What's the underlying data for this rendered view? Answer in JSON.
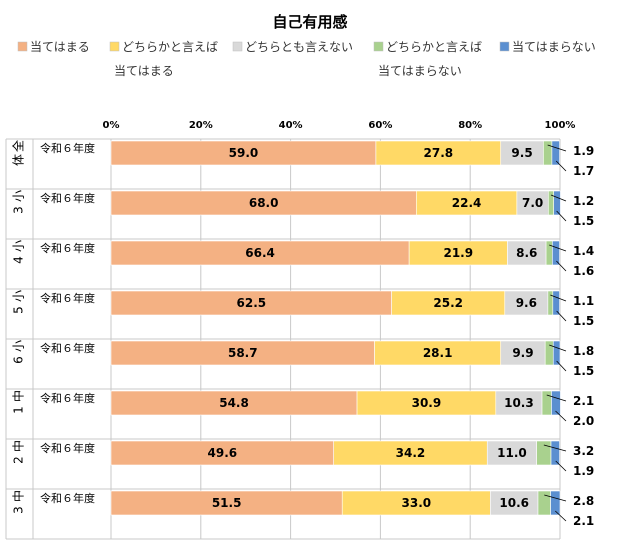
{
  "chart_data": {
    "type": "bar",
    "orientation": "horizontal",
    "stacked": "percent",
    "title": "自己有用感",
    "legend": {
      "position": "top",
      "entries": [
        {
          "lines": [
            "当てはまる"
          ],
          "color": "#f4b183"
        },
        {
          "lines": [
            "どちらかと言えば",
            "当てはまる"
          ],
          "color": "#ffd966"
        },
        {
          "lines": [
            "どちらとも言えない"
          ],
          "color": "#d9d9d9"
        },
        {
          "lines": [
            "どちらかと言えば",
            "当てはまらない"
          ],
          "color": "#a9d18e"
        },
        {
          "lines": [
            "当てはまらない"
          ],
          "color": "#5b8fd0"
        }
      ]
    },
    "xlim": [
      0,
      100
    ],
    "xticks": [
      "0%",
      "20%",
      "40%",
      "60%",
      "80%",
      "100%"
    ],
    "grid": true,
    "groups": [
      "全体",
      "小3",
      "小4",
      "小5",
      "小6",
      "中1",
      "中2",
      "中3"
    ],
    "row_label": "令和６年度",
    "series": [
      {
        "name": "当てはまる",
        "values": [
          59.0,
          68.0,
          66.4,
          62.5,
          58.7,
          54.8,
          49.6,
          51.5
        ]
      },
      {
        "name": "どちらかと言えば当てはまる",
        "values": [
          27.8,
          22.4,
          21.9,
          25.2,
          28.1,
          30.9,
          34.2,
          33.0
        ]
      },
      {
        "name": "どちらとも言えない",
        "values": [
          9.5,
          7.0,
          8.6,
          9.6,
          9.9,
          10.3,
          11.0,
          10.6
        ]
      },
      {
        "name": "どちらかと言えば当てはまらない",
        "values": [
          1.9,
          1.2,
          1.4,
          1.1,
          1.8,
          2.1,
          3.2,
          2.8
        ]
      },
      {
        "name": "当てはまらない",
        "values": [
          1.7,
          1.5,
          1.6,
          1.5,
          1.5,
          2.0,
          1.9,
          2.1
        ]
      }
    ],
    "labels": {
      "inside": [
        [
          "59.0",
          "27.8",
          "9.5"
        ],
        [
          "68.0",
          "22.4",
          "7.0"
        ],
        [
          "66.4",
          "21.9",
          "8.6"
        ],
        [
          "62.5",
          "25.2",
          "9.6"
        ],
        [
          "58.7",
          "28.1",
          "9.9"
        ],
        [
          "54.8",
          "30.9",
          "10.3"
        ],
        [
          "49.6",
          "34.2",
          "11.0"
        ],
        [
          "51.5",
          "33.0",
          "10.6"
        ]
      ],
      "outside": [
        [
          "1.9",
          "1.7"
        ],
        [
          "1.2",
          "1.5"
        ],
        [
          "1.4",
          "1.6"
        ],
        [
          "1.1",
          "1.5"
        ],
        [
          "1.8",
          "1.5"
        ],
        [
          "2.1",
          "2.0"
        ],
        [
          "3.2",
          "1.9"
        ],
        [
          "2.8",
          "2.1"
        ]
      ]
    }
  }
}
